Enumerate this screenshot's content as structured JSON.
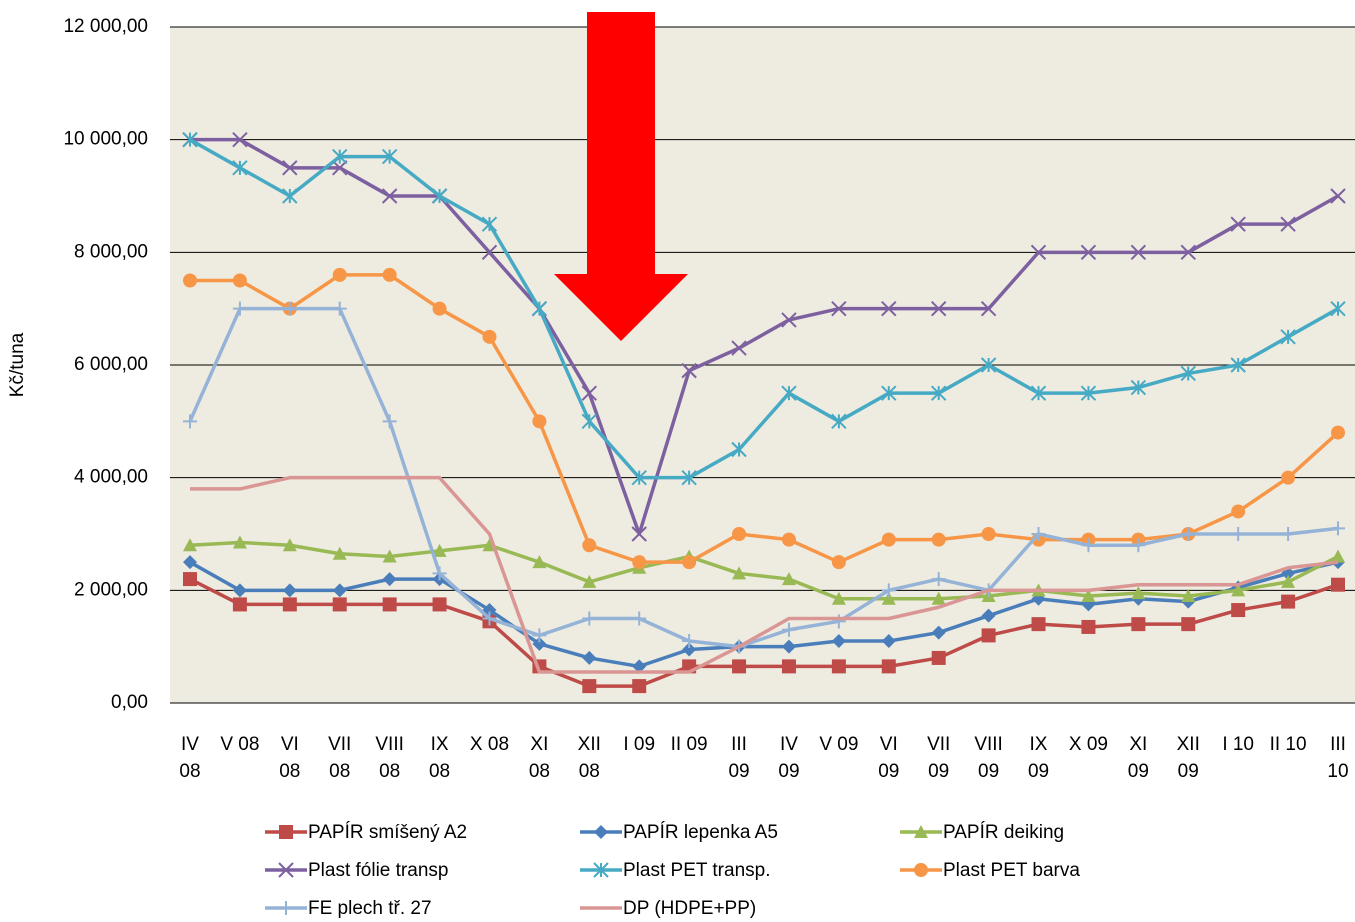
{
  "chart_data": {
    "type": "line",
    "y_label": "Kč/tuna",
    "categories": [
      "IV\n08",
      "V 08",
      "VI\n08",
      "VII\n08",
      "VIII\n08",
      "IX\n08",
      "X 08",
      "XI\n08",
      "XII\n08",
      "I 09",
      "II 09",
      "III\n09",
      "IV\n09",
      "V 09",
      "VI\n09",
      "VII\n09",
      "VIII\n09",
      "IX\n09",
      "X 09",
      "XI\n09",
      "XII\n09",
      "I 10",
      "II 10",
      "III\n10"
    ],
    "ylim": [
      0,
      12000
    ],
    "yticks": [
      {
        "value": 0,
        "label": "0,00"
      },
      {
        "value": 2000,
        "label": "2 000,00"
      },
      {
        "value": 4000,
        "label": "4 000,00"
      },
      {
        "value": 6000,
        "label": "6 000,00"
      },
      {
        "value": 8000,
        "label": "8 000,00"
      },
      {
        "value": 10000,
        "label": "10 000,00"
      },
      {
        "value": 12000,
        "label": "12 000,00"
      }
    ],
    "grid": true,
    "legend": "bottom",
    "series": [
      {
        "name": "PAPÍR smíšený A2",
        "color": "#be4b48",
        "marker": "square",
        "values": [
          2200,
          1750,
          1750,
          1750,
          1750,
          1750,
          1450,
          650,
          300,
          300,
          650,
          650,
          650,
          650,
          650,
          800,
          1200,
          1400,
          1350,
          1400,
          1400,
          1650,
          1800,
          2100
        ]
      },
      {
        "name": "PAPÍR lepenka A5",
        "color": "#4a7ebb",
        "marker": "diamond",
        "values": [
          2500,
          2000,
          2000,
          2000,
          2200,
          2200,
          1650,
          1050,
          800,
          650,
          950,
          1000,
          1000,
          1100,
          1100,
          1250,
          1550,
          1850,
          1750,
          1850,
          1800,
          2050,
          2300,
          2500
        ]
      },
      {
        "name": "PAPÍR deiking",
        "color": "#98b954",
        "marker": "triangle",
        "values": [
          2800,
          2850,
          2800,
          2650,
          2600,
          2700,
          2800,
          2500,
          2150,
          2400,
          2600,
          2300,
          2200,
          1850,
          1850,
          1850,
          1900,
          2000,
          1900,
          1950,
          1900,
          2000,
          2150,
          2600
        ]
      },
      {
        "name": "Plast fólie transp",
        "color": "#7d60a0",
        "marker": "x",
        "values": [
          10000,
          10000,
          9500,
          9500,
          9000,
          9000,
          8000,
          7000,
          5500,
          3000,
          5900,
          6300,
          6800,
          7000,
          7000,
          7000,
          7000,
          8000,
          8000,
          8000,
          8000,
          8500,
          8500,
          9000
        ]
      },
      {
        "name": "Plast PET transp.",
        "color": "#46aac5",
        "marker": "star",
        "values": [
          10000,
          9500,
          9000,
          9700,
          9700,
          9000,
          8500,
          7000,
          5000,
          4000,
          4000,
          4500,
          5500,
          5000,
          5500,
          5500,
          6000,
          5500,
          5500,
          5600,
          5850,
          6000,
          6500,
          7000
        ]
      },
      {
        "name": "Plast PET barva",
        "color": "#f79646",
        "marker": "circle",
        "values": [
          7500,
          7500,
          7000,
          7600,
          7600,
          7000,
          6500,
          5000,
          2800,
          2500,
          2500,
          3000,
          2900,
          2500,
          2900,
          2900,
          3000,
          2900,
          2900,
          2900,
          3000,
          3400,
          4000,
          4800
        ]
      },
      {
        "name": "FE plech tř. 27",
        "color": "#95b3d7",
        "marker": "plus",
        "values": [
          5000,
          7000,
          7000,
          7000,
          5000,
          2300,
          1500,
          1200,
          1500,
          1500,
          1100,
          1000,
          1300,
          1450,
          2000,
          2200,
          2000,
          3000,
          2800,
          2800,
          3000,
          3000,
          3000,
          3100
        ]
      },
      {
        "name": "DP (HDPE+PP)",
        "color": "#d99694",
        "marker": "none",
        "values": [
          3800,
          3800,
          4000,
          4000,
          4000,
          4000,
          3000,
          550,
          550,
          550,
          550,
          1000,
          1500,
          1500,
          1500,
          1700,
          2000,
          2000,
          2000,
          2100,
          2100,
          2100,
          2400,
          2500
        ]
      }
    ]
  }
}
